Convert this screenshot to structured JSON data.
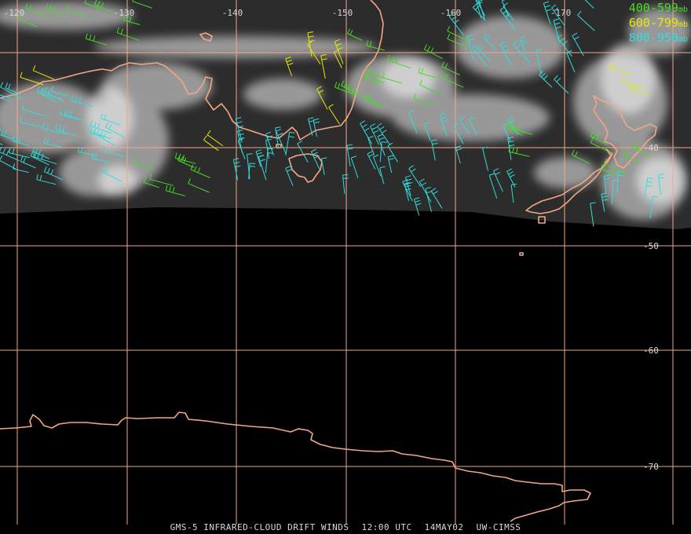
{
  "map": {
    "longitude_labels": [
      "-120",
      "-130",
      "-140",
      "-150",
      "-160",
      "-170"
    ],
    "latitude_labels": [
      "-40",
      "-50",
      "-60",
      "-70"
    ],
    "colors": {
      "grid": "#f0a888",
      "coast": "#f4a784",
      "band_400_599": "#44dd22",
      "band_600_799": "#e8e800",
      "band_800_950": "#33dddd"
    }
  },
  "legend": [
    {
      "range": "400-599",
      "unit": "mb",
      "color": "#44dd22"
    },
    {
      "range": "600-799",
      "unit": "mb",
      "color": "#e8e800"
    },
    {
      "range": "800-950",
      "unit": "mb",
      "color": "#33dddd"
    }
  ],
  "footer": {
    "product": "GMS-5 INFRARED-CLOUD DRIFT WINDS",
    "time": "12:00 UTC",
    "date": "14MAY02",
    "source": "UW-CIMSS"
  }
}
